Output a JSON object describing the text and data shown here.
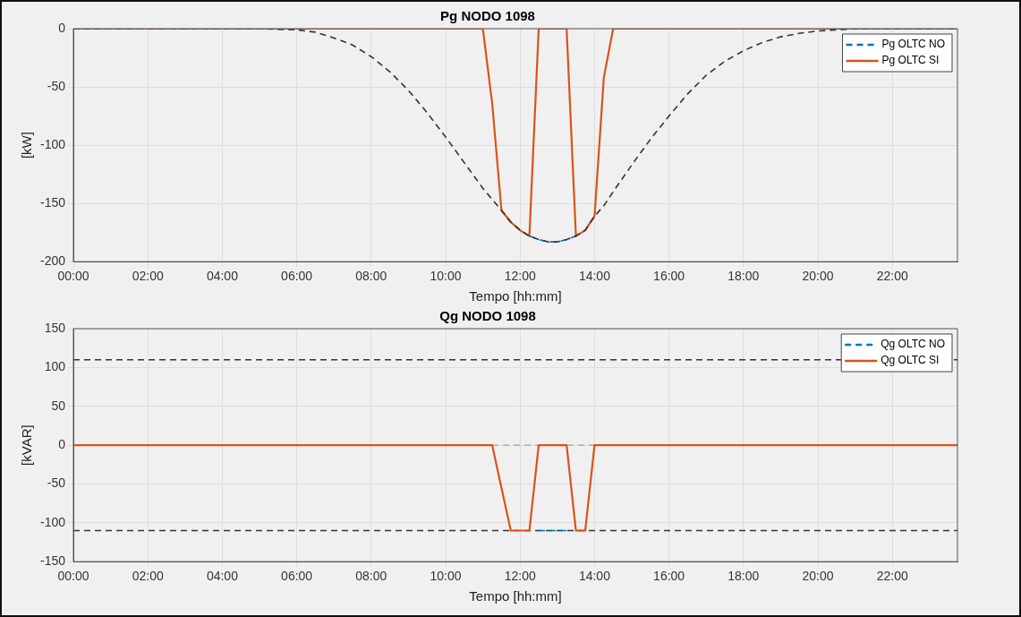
{
  "chart_data": [
    {
      "type": "line",
      "title": "Pg NODO 1098",
      "xlabel": "Tempo [hh:mm]",
      "ylabel": "[kW]",
      "xlim": [
        0,
        23.75
      ],
      "xticks": [
        {
          "value": 0,
          "label": "00:00"
        },
        {
          "value": 2,
          "label": "02:00"
        },
        {
          "value": 4,
          "label": "04:00"
        },
        {
          "value": 6,
          "label": "06:00"
        },
        {
          "value": 8,
          "label": "08:00"
        },
        {
          "value": 10,
          "label": "10:00"
        },
        {
          "value": 12,
          "label": "12:00"
        },
        {
          "value": 14,
          "label": "14:00"
        },
        {
          "value": 16,
          "label": "16:00"
        },
        {
          "value": 18,
          "label": "18:00"
        },
        {
          "value": 20,
          "label": "20:00"
        },
        {
          "value": 22,
          "label": "22:00"
        }
      ],
      "ylim": [
        -200,
        0
      ],
      "yticks": [
        -200,
        -150,
        -100,
        -50,
        0
      ],
      "grid": true,
      "legend": "top right",
      "series": [
        {
          "color": "#333333",
          "line_style": "dashed",
          "x": [
            0,
            5,
            5.5,
            6,
            6.5,
            7,
            7.5,
            8,
            8.5,
            9,
            9.5,
            10,
            10.5,
            11,
            11.5,
            11.75,
            12,
            12.25,
            12.5,
            12.75,
            13,
            13.25,
            13.5,
            13.75,
            14,
            14.25,
            14.5,
            15,
            15.5,
            16,
            16.5,
            17,
            17.5,
            18,
            18.5,
            19,
            19.5,
            20,
            21,
            23.75
          ],
          "values": [
            0,
            0,
            -0.5,
            -1,
            -3,
            -8,
            -14,
            -24,
            -37,
            -53,
            -72,
            -93,
            -115,
            -137,
            -156,
            -166,
            -173,
            -178,
            -181,
            -183,
            -183,
            -181,
            -178,
            -173,
            -161,
            -152,
            -140,
            -117,
            -95,
            -75,
            -56,
            -40,
            -28,
            -19,
            -12,
            -7,
            -4,
            -2,
            0,
            0
          ]
        },
        {
          "name": "Pg OLTC NO",
          "color": "#0072bd",
          "line_style": "dashed",
          "x": [
            12.25,
            12.5,
            12.75,
            13,
            13.25,
            13.5
          ],
          "values": [
            -178,
            -181,
            -183,
            -183,
            -181,
            -178
          ]
        },
        {
          "name": "Pg OLTC SI",
          "color": "#d95319",
          "line_style": "solid",
          "x": [
            0,
            11,
            11.25,
            11.5,
            11.75,
            12,
            12.25,
            12.5,
            13.25,
            13.5,
            13.75,
            14,
            14.25,
            14.5,
            23.75
          ],
          "values": [
            0,
            0,
            -64,
            -156,
            -166,
            -173,
            -178,
            0,
            0,
            -178,
            -173,
            -161,
            -42,
            0,
            0
          ]
        }
      ]
    },
    {
      "type": "line",
      "title": "Qg NODO 1098",
      "xlabel": "Tempo [hh:mm]",
      "ylabel": "[kVAR]",
      "xlim": [
        0,
        23.75
      ],
      "xticks": [
        {
          "value": 0,
          "label": "00:00"
        },
        {
          "value": 2,
          "label": "02:00"
        },
        {
          "value": 4,
          "label": "04:00"
        },
        {
          "value": 6,
          "label": "06:00"
        },
        {
          "value": 8,
          "label": "08:00"
        },
        {
          "value": 10,
          "label": "10:00"
        },
        {
          "value": 12,
          "label": "12:00"
        },
        {
          "value": 14,
          "label": "14:00"
        },
        {
          "value": 16,
          "label": "16:00"
        },
        {
          "value": 18,
          "label": "18:00"
        },
        {
          "value": 20,
          "label": "20:00"
        },
        {
          "value": 22,
          "label": "22:00"
        }
      ],
      "ylim": [
        -150,
        150
      ],
      "yticks": [
        -150,
        -100,
        -50,
        0,
        50,
        100,
        150
      ],
      "grid": true,
      "legend": "top right",
      "ref_lines": [
        {
          "axis": "y",
          "value": 110,
          "color": "#333333",
          "line_style": "dashed"
        },
        {
          "axis": "y",
          "value": -110,
          "color": "#333333",
          "line_style": "dashed"
        },
        {
          "axis": "y",
          "value": 0,
          "color": "#a0a0a0",
          "line_style": "dashed"
        }
      ],
      "series": [
        {
          "name": "Qg OLTC NO",
          "color": "#0072bd",
          "line_style": "dashed",
          "x": [
            12.5,
            12.75,
            13,
            13.25
          ],
          "values": [
            -110,
            -110,
            -110,
            -110
          ]
        },
        {
          "name": "Qg OLTC SI",
          "color": "#d95319",
          "line_style": "solid",
          "x": [
            0,
            11.25,
            11.75,
            12.25,
            12.5,
            13.25,
            13.5,
            13.75,
            14,
            23.75
          ],
          "values": [
            0,
            0,
            -110,
            -110,
            0,
            0,
            -110,
            -110,
            0,
            0
          ]
        }
      ]
    }
  ]
}
